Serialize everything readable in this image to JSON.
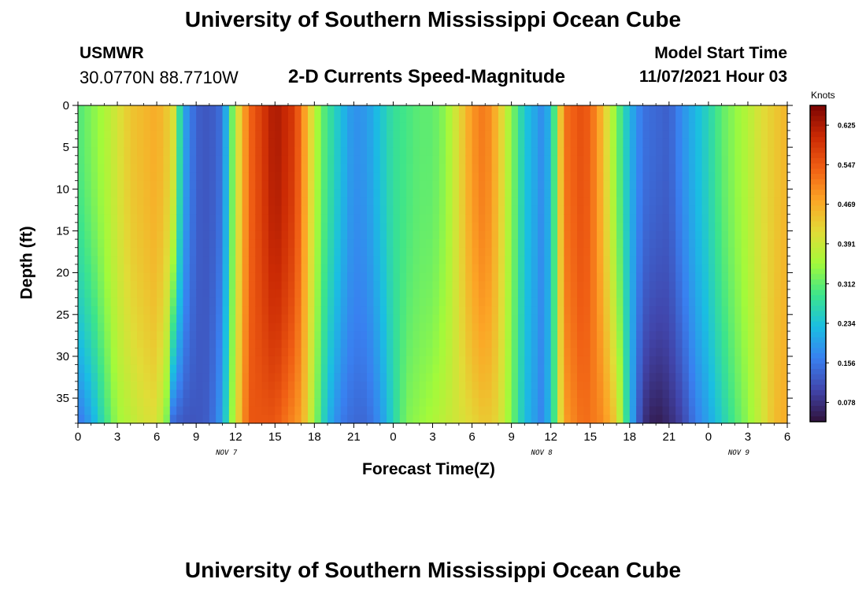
{
  "page_title": "University of Southern Mississippi Ocean Cube",
  "station": {
    "name": "USMWR",
    "coords": "30.0770N  88.7710W"
  },
  "subtitle": "2-D Currents Speed-Magnitude",
  "model_start": {
    "label": "Model Start Time",
    "value": "11/07/2021 Hour 03"
  },
  "chart_data": {
    "type": "heatmap",
    "title": "2-D Currents Speed-Magnitude",
    "xlabel": "Forecast Time(Z)",
    "ylabel": "Depth (ft)",
    "x_tick_labels": [
      "0",
      "3",
      "6",
      "9",
      "12",
      "15",
      "18",
      "21",
      "0",
      "3",
      "6",
      "9",
      "12",
      "15",
      "18",
      "21",
      "0",
      "3",
      "6"
    ],
    "x_range_hours": [
      0,
      54
    ],
    "day_labels": [
      {
        "label": "NOV 7",
        "hour": 12
      },
      {
        "label": "NOV 8",
        "hour": 36
      },
      {
        "label": "NOV 9",
        "hour": 51
      }
    ],
    "y_ticks": [
      0,
      5,
      10,
      15,
      20,
      25,
      30,
      35
    ],
    "y_range": [
      0,
      38
    ],
    "y_inverted": true,
    "colorbar": {
      "label": "Knots",
      "min": 0.04,
      "max": 0.664,
      "tick_labels": [
        "0.625",
        "0.547",
        "0.469",
        "0.391",
        "0.312",
        "0.234",
        "0.156",
        "0.078"
      ],
      "tick_values": [
        0.625,
        0.547,
        0.469,
        0.391,
        0.312,
        0.234,
        0.156,
        0.078
      ]
    },
    "speed_profile_surface": {
      "hours": [
        0,
        2,
        4,
        6,
        7.2,
        8,
        9,
        10,
        11,
        12,
        13,
        15,
        16.5,
        17.5,
        18.5,
        20,
        21,
        22,
        24,
        26,
        27,
        28,
        30,
        31,
        32,
        33,
        34,
        35.3,
        36,
        37,
        38.5,
        39.5,
        41,
        42,
        43,
        45,
        46,
        48,
        49,
        50,
        51,
        52,
        54
      ],
      "values": [
        0.3,
        0.36,
        0.44,
        0.47,
        0.42,
        0.21,
        0.13,
        0.12,
        0.15,
        0.38,
        0.53,
        0.63,
        0.58,
        0.45,
        0.32,
        0.23,
        0.18,
        0.19,
        0.28,
        0.31,
        0.31,
        0.34,
        0.49,
        0.52,
        0.45,
        0.34,
        0.24,
        0.18,
        0.22,
        0.52,
        0.56,
        0.5,
        0.33,
        0.22,
        0.15,
        0.13,
        0.18,
        0.26,
        0.31,
        0.34,
        0.37,
        0.41,
        0.46
      ]
    },
    "speed_profile_bottom": {
      "hours": [
        0,
        1,
        2,
        3,
        5,
        6,
        7,
        7.2,
        8,
        9,
        10,
        11,
        12,
        13,
        15,
        17,
        18,
        19,
        20,
        21,
        22,
        23,
        24,
        25,
        27,
        29,
        31,
        32,
        33,
        34,
        35.3,
        36,
        37,
        38.5,
        40,
        41,
        42,
        43,
        44,
        45,
        46,
        47,
        48,
        49,
        50,
        51,
        52,
        53,
        54
      ],
      "values": [
        0.15,
        0.2,
        0.28,
        0.35,
        0.4,
        0.41,
        0.3,
        0.14,
        0.12,
        0.12,
        0.13,
        0.2,
        0.4,
        0.55,
        0.55,
        0.48,
        0.35,
        0.22,
        0.16,
        0.14,
        0.14,
        0.18,
        0.26,
        0.33,
        0.36,
        0.4,
        0.44,
        0.42,
        0.33,
        0.23,
        0.17,
        0.23,
        0.48,
        0.53,
        0.5,
        0.43,
        0.23,
        0.08,
        0.05,
        0.07,
        0.1,
        0.16,
        0.2,
        0.25,
        0.3,
        0.34,
        0.39,
        0.45,
        0.47
      ]
    }
  },
  "footer_title": "University of Southern Mississippi Ocean Cube"
}
